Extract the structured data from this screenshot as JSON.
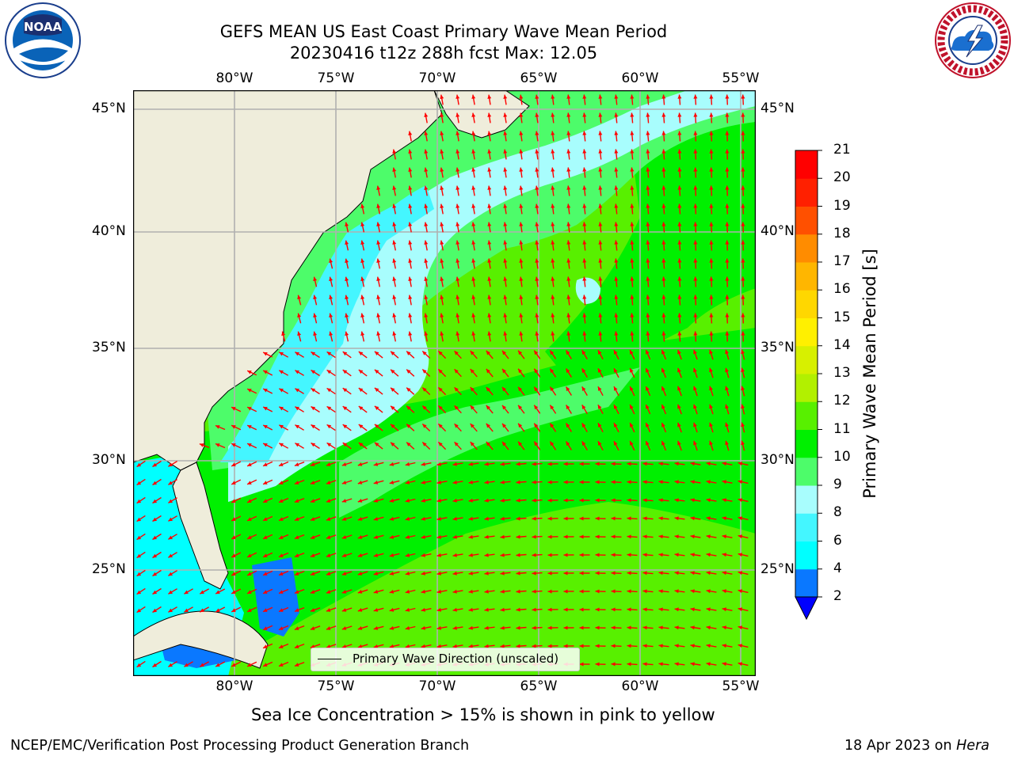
{
  "header": {
    "title_line1": "GEFS MEAN US East Coast Primary Wave Mean Period",
    "title_line2": "20230416 t12z 288h fcst   Max: 12.05"
  },
  "logos": {
    "left": {
      "text": "NOAA",
      "icon": "noaa-logo"
    },
    "right": {
      "icon": "nws-logo"
    }
  },
  "axes": {
    "lon_labels": [
      "80°W",
      "75°W",
      "70°W",
      "65°W",
      "60°W",
      "55°W"
    ],
    "lat_labels": [
      "45°N",
      "40°N",
      "35°N",
      "30°N",
      "25°N"
    ]
  },
  "legend": {
    "text": "Primary Wave Direction (unscaled)"
  },
  "colorbar": {
    "label": "Primary Wave Mean Period [s]",
    "ticks": [
      "2",
      "4",
      "6",
      "8",
      "9",
      "10",
      "11",
      "12",
      "13",
      "14",
      "15",
      "16",
      "17",
      "18",
      "19",
      "20",
      "21"
    ],
    "colors": [
      "#0000ff",
      "#0a78ff",
      "#00ffff",
      "#44f6ff",
      "#a8fdfd",
      "#4dfc6a",
      "#00f000",
      "#58f000",
      "#b2f000",
      "#d7f000",
      "#fff000",
      "#ffd700",
      "#ffb600",
      "#ff8c00",
      "#ff5000",
      "#ff2000",
      "#ff0000"
    ],
    "extend": "min"
  },
  "caption": "Sea Ice Concentration > 15% is shown in pink to yellow",
  "footer": {
    "left": "NCEP/EMC/Verification Post Processing Product Generation Branch",
    "right_prefix": "18 Apr 2023 on ",
    "right_italic": "Hera"
  },
  "map_colors": {
    "land": "#efeddb",
    "grid": "#b0b0b0",
    "arrow": "#ff0000",
    "period_4_6": "#0a78ff",
    "period_6_8": "#00ffff",
    "period_8_9": "#a8fdfd",
    "period_9_10": "#4dfc6a",
    "period_10_11": "#00f000",
    "period_11_12": "#58f000"
  }
}
